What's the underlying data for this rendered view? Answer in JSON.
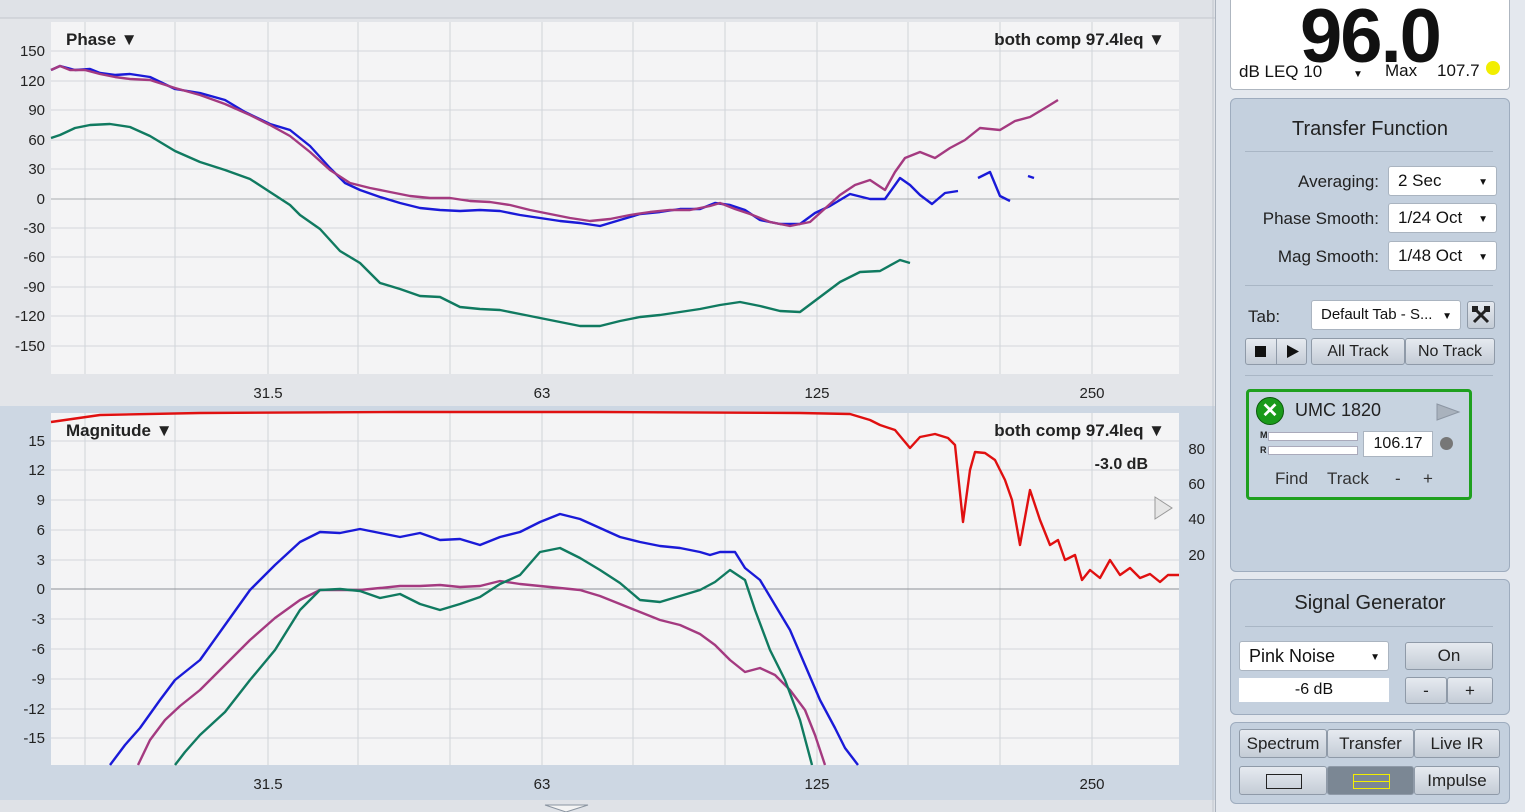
{
  "phase_plot": {
    "title": "Phase ▼",
    "trace_label": "both comp 97.4leq ▼",
    "y_ticks": [
      "150",
      "120",
      "90",
      "60",
      "30",
      "0",
      "-30",
      "-60",
      "-90",
      "-120",
      "-150"
    ],
    "x_ticks": [
      "31.5",
      "63",
      "125",
      "250"
    ]
  },
  "magnitude_plot": {
    "title": "Magnitude ▼",
    "trace_label": "both comp 97.4leq ▼",
    "marker_readout": "-3.0 dB",
    "y_ticks": [
      "15",
      "12",
      "9",
      "6",
      "3",
      "0",
      "-3",
      "-6",
      "-9",
      "-12",
      "-15"
    ],
    "coherence_ticks": [
      "80",
      "60",
      "40",
      "20"
    ],
    "x_ticks": [
      "31.5",
      "63",
      "125",
      "250"
    ]
  },
  "meter": {
    "value": "96.0",
    "unit_label": "dB LEQ 10",
    "max_label": "Max",
    "max_value": "107.7",
    "indicator_color": "#f2ee00"
  },
  "transfer_function": {
    "title": "Transfer Function",
    "averaging_label": "Averaging:",
    "averaging_value": "2 Sec",
    "phase_smooth_label": "Phase Smooth:",
    "phase_smooth_value": "1/24 Oct",
    "mag_smooth_label": "Mag Smooth:",
    "mag_smooth_value": "1/48 Oct",
    "tab_label": "Tab:",
    "tab_value": "Default Tab - S...",
    "all_track": "All Track",
    "no_track": "No Track"
  },
  "device": {
    "name": "UMC 1820",
    "m_label": "M",
    "r_label": "R",
    "delay_value": "106.17",
    "find": "Find",
    "track": "Track",
    "minus": "-",
    "plus": "+"
  },
  "signal_generator": {
    "title": "Signal Generator",
    "source": "Pink Noise",
    "level": "-6 dB",
    "on_label": "On",
    "minus": "-",
    "plus": "+"
  },
  "view_modes": {
    "spectrum": "Spectrum",
    "transfer": "Transfer",
    "live_ir": "Live IR",
    "impulse": "Impulse"
  },
  "colors": {
    "trace_blue": "#1a1ad8",
    "trace_purple": "#a43a80",
    "trace_green": "#107a60",
    "coherence_red": "#e01010",
    "device_border": "#1fa01f"
  }
}
